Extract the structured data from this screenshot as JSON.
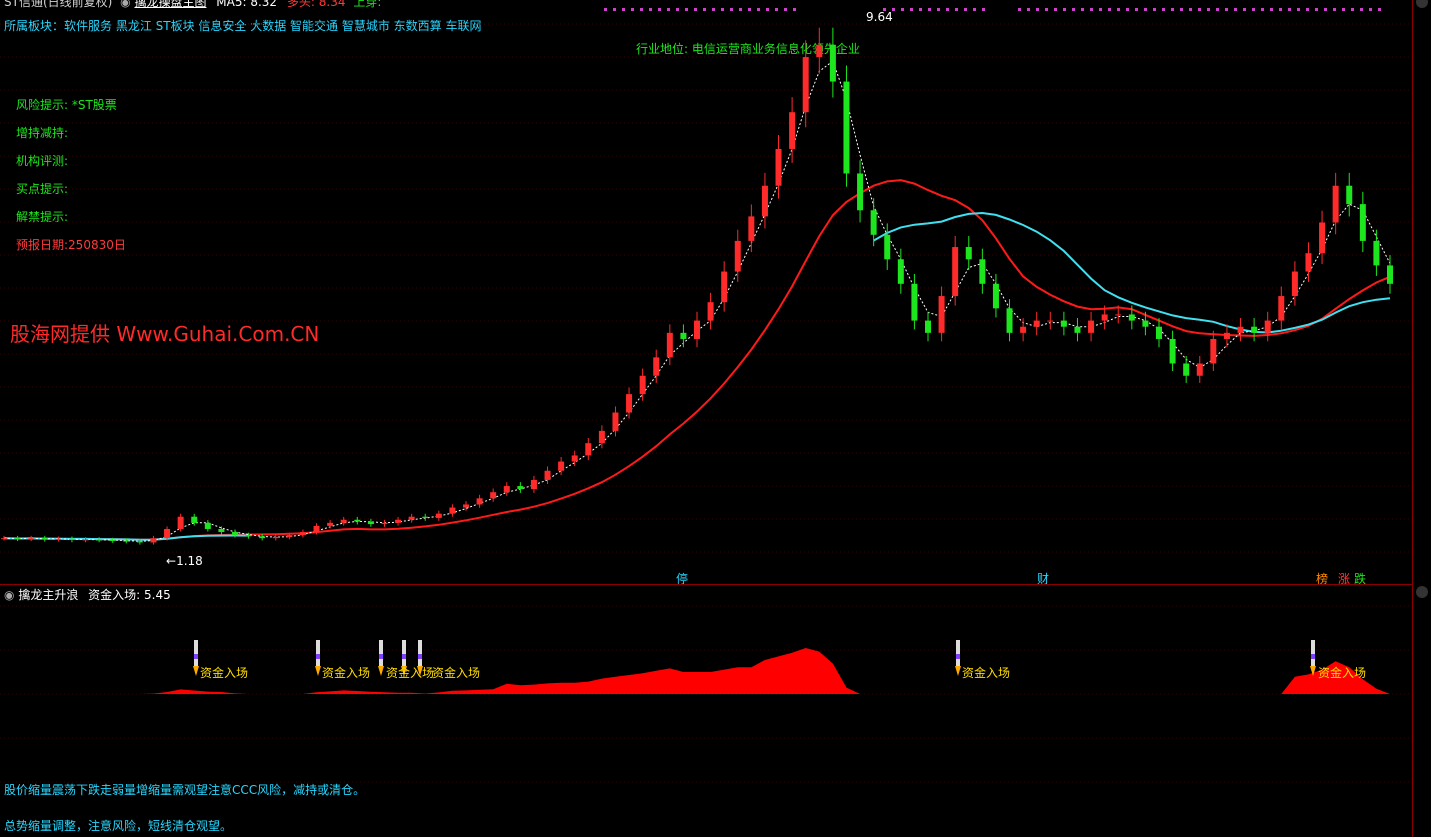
{
  "header": {
    "title": "ST信通(日线前复权)",
    "indicator": "擒龙操盘主图",
    "ma_text": "MA5: 8.32",
    "extra_text": "多头: 8.34",
    "extra_text2": "上穿:"
  },
  "sector": "所属板块：软件服务 黑龙江 ST板块 信息安全 大数据 智能交通 智慧城市 东数西算 车联网",
  "industry": "行业地位: 电信运营商业务信息化领先企业",
  "fundamentals": {
    "risk": "风险提示: *ST股票",
    "holdings": "增持减持:",
    "rating": "机构评测:",
    "buy": "买点提示:",
    "unlock": "解禁提示:",
    "report": "预报日期:250830日"
  },
  "watermark": "股海网提供 Www.Guhai.Com.CN",
  "annotations": {
    "high": "9.64",
    "low": "1.18"
  },
  "events": [
    {
      "label": "停",
      "color": "#26d8ff"
    },
    {
      "label": "财",
      "color": "#26d8ff"
    },
    {
      "label": "榜",
      "color": "#ff8c00"
    },
    {
      "label": "涨",
      "color": "#ff3b3b"
    },
    {
      "label": "跌",
      "color": "#1ee61e"
    }
  ],
  "colors": {
    "up": "#ff2a2a",
    "down": "#1ee61e",
    "ma_long": "#ff1a1a",
    "ma_mid": "#40e0f0",
    "ma_short": "#ffffff",
    "fund_area": "#ff0000",
    "signal_text": "#ffdd00"
  },
  "panel2": {
    "title": "擒龙主升浪",
    "value_label": "资金入场: 5.45",
    "signal_label": "资金入场"
  },
  "bottom": {
    "line1": "股价缩量震荡下跌走弱量增缩量需观望注意CCC风险，减持或清仓。",
    "line2": "总势缩量调整，注意风险，短线清仓观望。"
  },
  "chart_data": {
    "type": "candlestick",
    "title": "ST信通(日线前复权)",
    "series_close": [
      1.25,
      1.24,
      1.25,
      1.23,
      1.24,
      1.22,
      1.23,
      1.22,
      1.21,
      1.2,
      1.18,
      1.25,
      1.4,
      1.6,
      1.5,
      1.4,
      1.35,
      1.3,
      1.28,
      1.25,
      1.27,
      1.3,
      1.35,
      1.45,
      1.5,
      1.55,
      1.52,
      1.48,
      1.5,
      1.55,
      1.6,
      1.58,
      1.65,
      1.75,
      1.8,
      1.9,
      2.0,
      2.1,
      2.05,
      2.2,
      2.35,
      2.5,
      2.6,
      2.8,
      3.0,
      3.3,
      3.6,
      3.9,
      4.2,
      4.6,
      4.5,
      4.8,
      5.1,
      5.6,
      6.1,
      6.5,
      7.0,
      7.6,
      8.2,
      9.1,
      9.3,
      8.7,
      7.2,
      6.6,
      6.2,
      5.8,
      5.4,
      4.8,
      4.6,
      5.2,
      6.0,
      5.8,
      5.4,
      5.0,
      4.6,
      4.7,
      4.8,
      4.8,
      4.7,
      4.6,
      4.8,
      4.9,
      4.9,
      4.8,
      4.7,
      4.5,
      4.1,
      3.9,
      4.1,
      4.5,
      4.6,
      4.7,
      4.6,
      4.8,
      5.2,
      5.6,
      5.9,
      6.4,
      7.0,
      6.7,
      6.1,
      5.7,
      5.4
    ],
    "y_markers": {
      "high": 9.64,
      "low": 1.18
    }
  }
}
